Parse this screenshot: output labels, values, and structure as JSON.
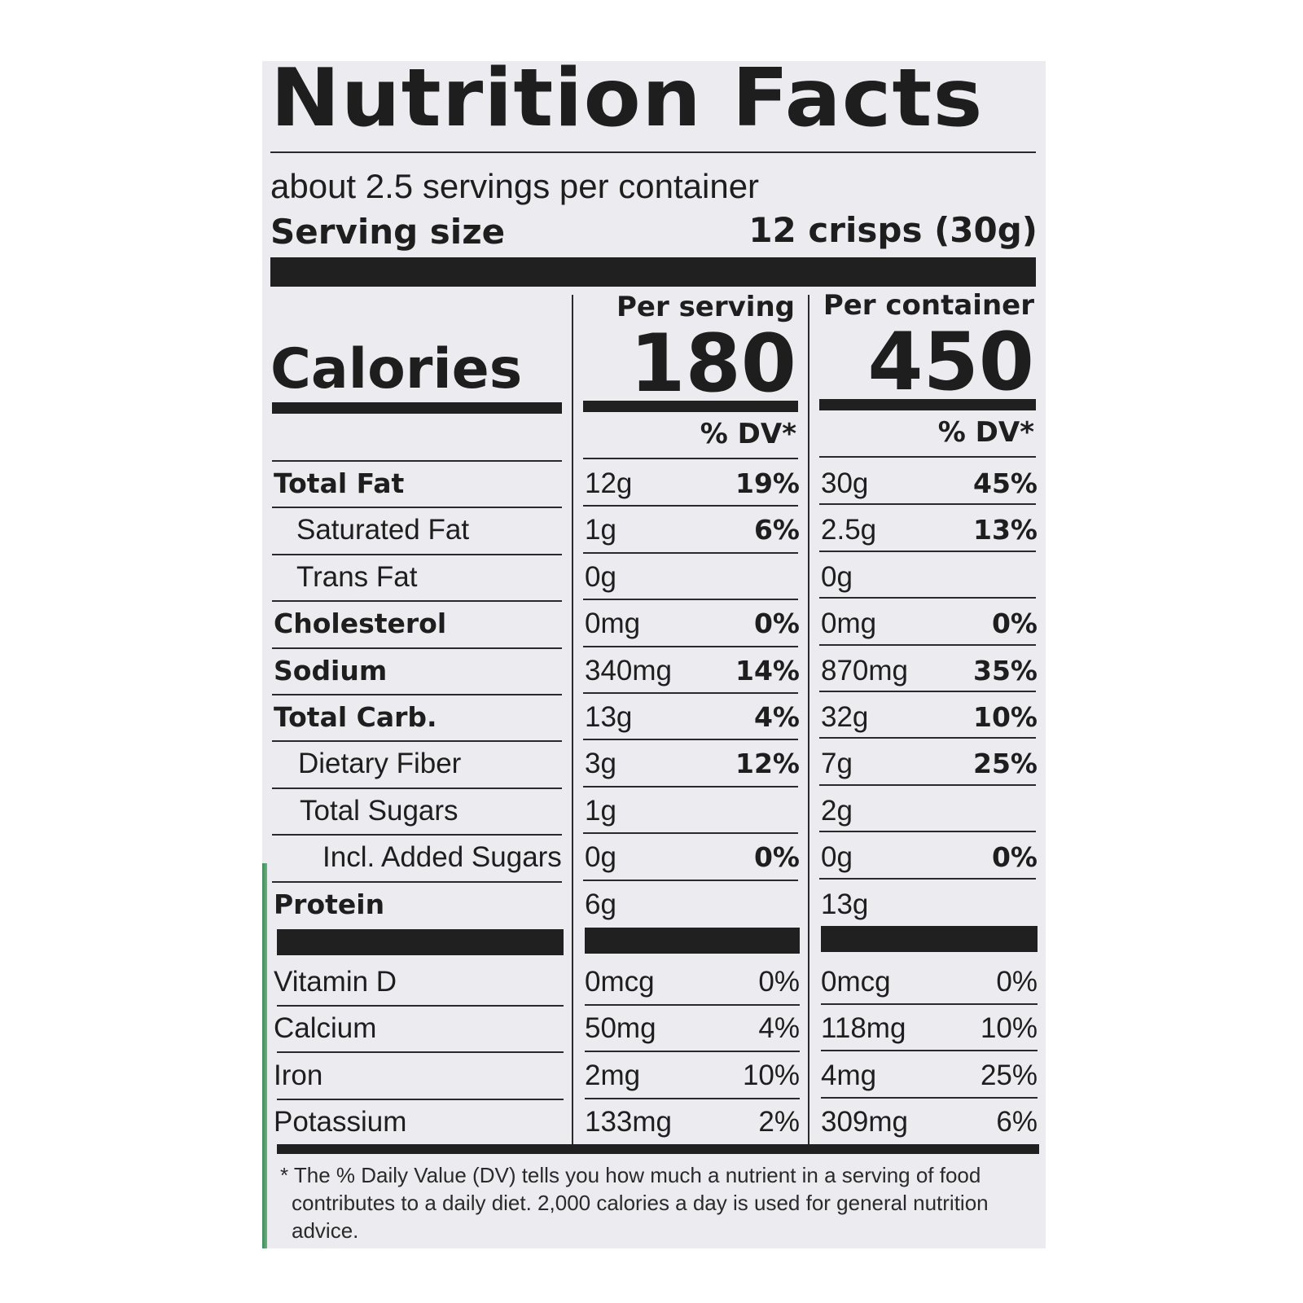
{
  "title": "Nutrition Facts",
  "servings_per_container": "about 2.5 servings per container",
  "serving_size_label": "Serving size",
  "serving_size_value": "12 crisps (30g)",
  "per_serving_label": "Per serving",
  "per_container_label": "Per container",
  "calories_label": "Calories",
  "calories_per_serving": "180",
  "calories_per_container": "450",
  "dv_header": "% DV*",
  "nutrients": [
    {
      "name": "Total Fat",
      "serving_amount": "12g",
      "serving_dv": "19%",
      "container_amount": "30g",
      "container_dv": "45%"
    },
    {
      "name": "Saturated Fat",
      "serving_amount": "1g",
      "serving_dv": "6%",
      "container_amount": "2.5g",
      "container_dv": "13%"
    },
    {
      "name": "Trans Fat",
      "serving_amount": "0g",
      "serving_dv": "",
      "container_amount": "0g",
      "container_dv": ""
    },
    {
      "name": "Cholesterol",
      "serving_amount": "0mg",
      "serving_dv": "0%",
      "container_amount": "0mg",
      "container_dv": "0%"
    },
    {
      "name": "Sodium",
      "serving_amount": "340mg",
      "serving_dv": "14%",
      "container_amount": "870mg",
      "container_dv": "35%"
    },
    {
      "name": "Total Carb.",
      "serving_amount": "13g",
      "serving_dv": "4%",
      "container_amount": "32g",
      "container_dv": "10%"
    },
    {
      "name": "Dietary Fiber",
      "serving_amount": "3g",
      "serving_dv": "12%",
      "container_amount": "7g",
      "container_dv": "25%"
    },
    {
      "name": "Total Sugars",
      "serving_amount": "1g",
      "serving_dv": "",
      "container_amount": "2g",
      "container_dv": ""
    },
    {
      "name": "Incl. Added Sugars",
      "serving_amount": "0g",
      "serving_dv": "0%",
      "container_amount": "0g",
      "container_dv": "0%"
    },
    {
      "name": "Protein",
      "serving_amount": "6g",
      "serving_dv": "",
      "container_amount": "13g",
      "container_dv": ""
    }
  ],
  "vitamins": [
    {
      "name": "Vitamin D",
      "serving_amount": "0mcg",
      "serving_dv": "0%",
      "container_amount": "0mcg",
      "container_dv": "0%"
    },
    {
      "name": "Calcium",
      "serving_amount": "50mg",
      "serving_dv": "4%",
      "container_amount": "118mg",
      "container_dv": "10%"
    },
    {
      "name": "Iron",
      "serving_amount": "2mg",
      "serving_dv": "10%",
      "container_amount": "4mg",
      "container_dv": "25%"
    },
    {
      "name": "Potassium",
      "serving_amount": "133mg",
      "serving_dv": "2%",
      "container_amount": "309mg",
      "container_dv": "6%"
    }
  ],
  "footnote_lines": [
    "* The % Daily Value (DV) tells you how much a nutrient in a serving of food",
    "contributes to a daily diet. 2,000 calories a day is used for general nutrition",
    "advice."
  ],
  "colors": {
    "panel": "#ecebf0",
    "ink": "#1e1e1e",
    "edge_green": "#3d8a57"
  }
}
